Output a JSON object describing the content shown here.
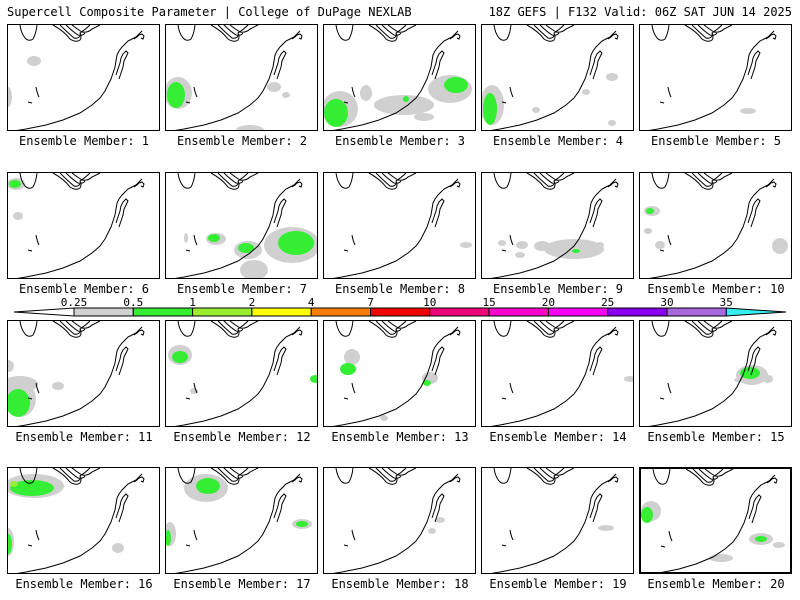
{
  "header": {
    "left": "Supercell Composite Parameter | College of DuPage NEXLAB",
    "right": "18Z GEFS | F132 Valid: 06Z SAT JUN 14 2025"
  },
  "colorbar": {
    "labels": [
      "0.25",
      "0.5",
      "1",
      "2",
      "4",
      "7",
      "10",
      "15",
      "20",
      "25",
      "30",
      "35"
    ],
    "colors": [
      "#ffffff",
      "#d0d0d0",
      "#33ee33",
      "#99ee33",
      "#ffff00",
      "#ff8000",
      "#ee0000",
      "#ee0077",
      "#ff00cc",
      "#ff00ff",
      "#8800ee",
      "#aa66dd",
      "#33eeee"
    ]
  },
  "panels": [
    {
      "label": "Ensemble Member: 1",
      "blobs": []
    },
    {
      "label": "Ensemble Member: 2",
      "blobs": []
    },
    {
      "label": "Ensemble Member: 3",
      "blobs": []
    },
    {
      "label": "Ensemble Member: 4",
      "blobs": []
    },
    {
      "label": "Ensemble Member: 5",
      "blobs": []
    },
    {
      "label": "Ensemble Member: 6",
      "blobs": []
    },
    {
      "label": "Ensemble Member: 7",
      "blobs": []
    },
    {
      "label": "Ensemble Member: 8",
      "blobs": []
    },
    {
      "label": "Ensemble Member: 9",
      "blobs": []
    },
    {
      "label": "Ensemble Member: 10",
      "blobs": []
    },
    {
      "label": "Ensemble Member: 11",
      "blobs": []
    },
    {
      "label": "Ensemble Member: 12",
      "blobs": []
    },
    {
      "label": "Ensemble Member: 13",
      "blobs": []
    },
    {
      "label": "Ensemble Member: 14",
      "blobs": []
    },
    {
      "label": "Ensemble Member: 15",
      "blobs": []
    },
    {
      "label": "Ensemble Member: 16",
      "blobs": []
    },
    {
      "label": "Ensemble Member: 17",
      "blobs": []
    },
    {
      "label": "Ensemble Member: 18",
      "blobs": []
    },
    {
      "label": "Ensemble Member: 19",
      "blobs": []
    },
    {
      "label": "Ensemble Member: 20",
      "blobs": []
    }
  ]
}
